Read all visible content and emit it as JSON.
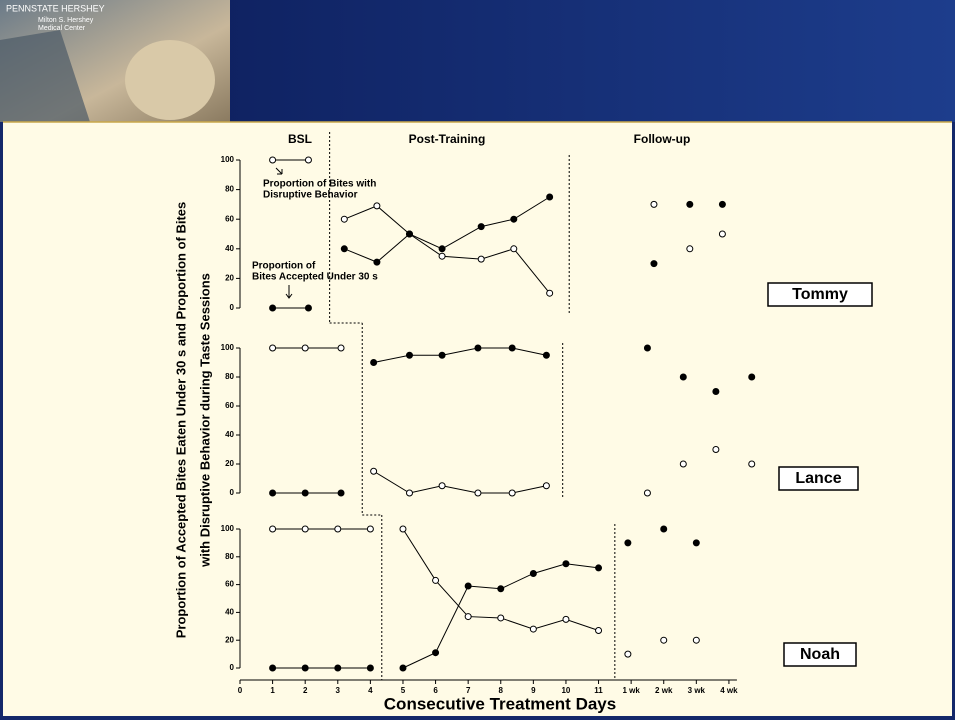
{
  "header": {
    "brand": "PENNSTATE HERSHEY",
    "sub": [
      "Milton S. Hershey",
      "Medical Center"
    ]
  },
  "chart_data": [
    {
      "type": "line",
      "title": "Tommy",
      "phase_labels": [
        "BSL",
        "Post-Training",
        "Follow-up"
      ],
      "y_label": [
        "Proportion of  Accepted Bites Eaten Under 30 s and Proportion of Bites",
        "with  Disruptive  Behavior during  Taste  Sessions"
      ],
      "annotations": [
        [
          "Proportion of Bites with",
          "Disruptive Behavior"
        ],
        [
          "Proportion of",
          "Bites Accepted  Under 30 s"
        ]
      ],
      "xlim": [
        0,
        15.8
      ],
      "ylim": [
        0,
        100
      ],
      "yticks": [
        0,
        20,
        40,
        60,
        80,
        100
      ],
      "phase_changes": [
        2.75,
        10.1
      ],
      "series": [
        {
          "marker": "open",
          "color": "#000000",
          "x": [
            1,
            2.1,
            null,
            3.2,
            4.2,
            5.2,
            6.2,
            7.4,
            8.4,
            9.5,
            null,
            12.7,
            null,
            13.8,
            null,
            14.8
          ],
          "values": [
            100,
            100,
            null,
            60,
            69,
            50,
            35,
            33,
            40,
            10,
            null,
            70,
            null,
            40,
            null,
            50
          ]
        },
        {
          "marker": "filled",
          "color": "#000000",
          "x": [
            1,
            2.1,
            null,
            3.2,
            4.2,
            5.2,
            6.2,
            7.4,
            8.4,
            9.5,
            null,
            12.7,
            null,
            13.8,
            null,
            14.8
          ],
          "values": [
            0,
            0,
            null,
            40,
            31,
            50,
            40,
            55,
            60,
            75,
            null,
            30,
            null,
            70,
            null,
            70
          ]
        }
      ]
    },
    {
      "type": "line",
      "title": "Lance",
      "xlim": [
        0,
        15.8
      ],
      "ylim": [
        0,
        100
      ],
      "yticks": [
        0,
        20,
        40,
        60,
        80,
        100
      ],
      "phase_changes": [
        3.75,
        9.9
      ],
      "series": [
        {
          "marker": "open",
          "color": "#000000",
          "x": [
            1,
            2,
            3.1,
            null,
            4.1,
            5.2,
            6.2,
            7.3,
            8.35,
            9.4,
            null,
            12.5,
            null,
            13.6,
            null,
            14.6,
            null,
            15.7
          ],
          "values": [
            100,
            100,
            100,
            null,
            15,
            0,
            5,
            0,
            0,
            5,
            null,
            0,
            null,
            20,
            null,
            30,
            null,
            20
          ]
        },
        {
          "marker": "filled",
          "color": "#000000",
          "x": [
            1,
            2,
            3.1,
            null,
            4.1,
            5.2,
            6.2,
            7.3,
            8.35,
            9.4,
            null,
            12.5,
            null,
            13.6,
            null,
            14.6,
            null,
            15.7
          ],
          "values": [
            0,
            0,
            0,
            null,
            90,
            95,
            95,
            100,
            100,
            95,
            null,
            100,
            null,
            80,
            null,
            70,
            null,
            80
          ]
        }
      ]
    },
    {
      "type": "line",
      "title": "Noah",
      "x_label": "Consecutive Treatment Days",
      "xlim": [
        0,
        15.8
      ],
      "ylim": [
        0,
        100
      ],
      "yticks": [
        0,
        20,
        40,
        60,
        80,
        100
      ],
      "phase_changes": [
        4.35,
        11.5
      ],
      "xticks": [
        0,
        1,
        2,
        3,
        4,
        5,
        6,
        7,
        8,
        9,
        10,
        11,
        {
          "value": 12,
          "label": "1 wk"
        },
        {
          "value": 13,
          "label": "2 wk"
        },
        {
          "value": 14,
          "label": "3 wk"
        },
        {
          "value": 15,
          "label": "4 wk"
        }
      ],
      "series": [
        {
          "marker": "open",
          "color": "#000000",
          "x": [
            1,
            2,
            3,
            4,
            null,
            5,
            6,
            7,
            8,
            9,
            10,
            11,
            null,
            11.9,
            null,
            13,
            null,
            14
          ],
          "values": [
            100,
            100,
            100,
            100,
            null,
            100,
            63,
            37,
            36,
            28,
            35,
            27,
            null,
            10,
            null,
            20,
            null,
            20
          ]
        },
        {
          "marker": "filled",
          "color": "#000000",
          "x": [
            1,
            2,
            3,
            4,
            null,
            5,
            6,
            7,
            8,
            9,
            10,
            11,
            null,
            11.9,
            null,
            13,
            null,
            14
          ],
          "values": [
            0,
            0,
            0,
            0,
            null,
            0,
            11,
            59,
            57,
            68,
            75,
            72,
            null,
            90,
            null,
            100,
            null,
            90
          ]
        }
      ]
    }
  ]
}
